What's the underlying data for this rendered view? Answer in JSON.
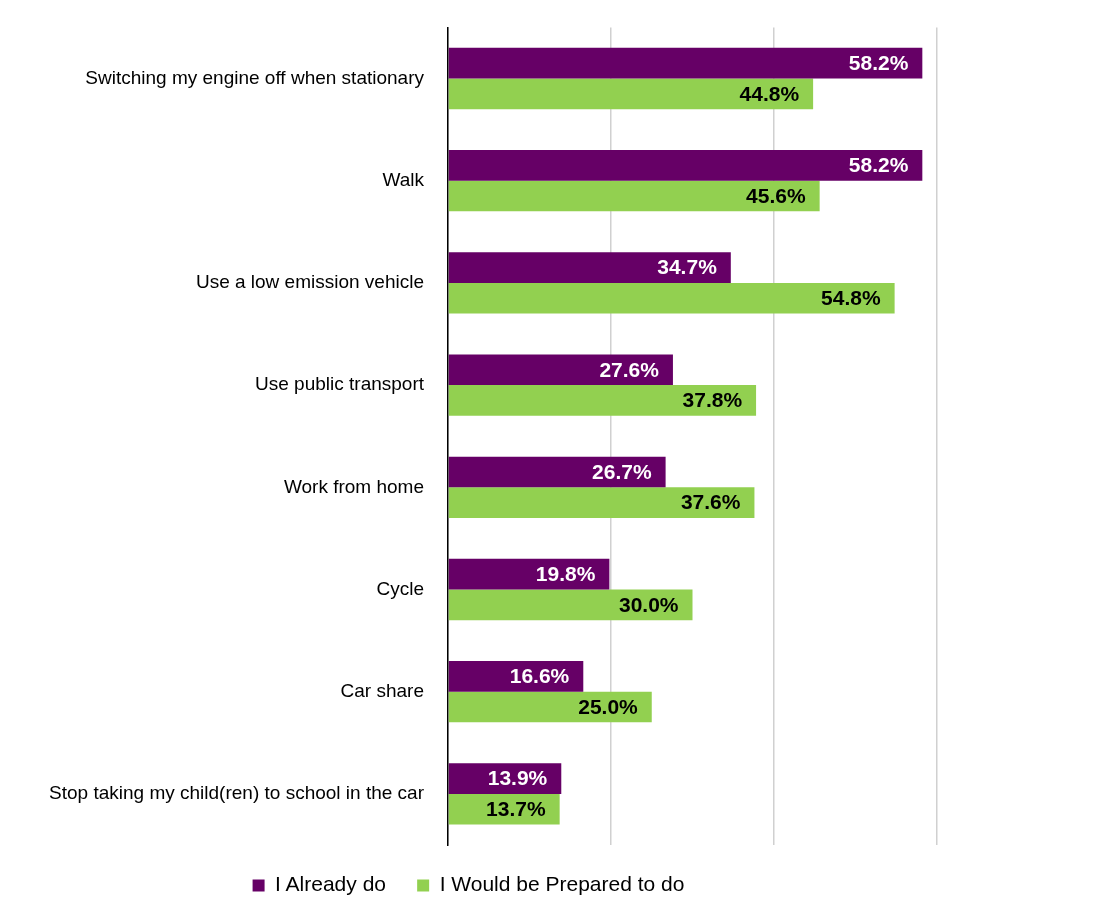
{
  "chart_data": {
    "type": "bar",
    "orientation": "horizontal",
    "categories": [
      "Switching my engine off when stationary",
      "Walk",
      "Use a low emission vehicle",
      "Use public transport",
      "Work from home",
      "Cycle",
      "Car share",
      "Stop taking my child(ren) to school in the car"
    ],
    "series": [
      {
        "name": "I Already do",
        "color": "#660066",
        "values": [
          58.2,
          58.2,
          34.7,
          27.6,
          26.7,
          19.8,
          16.6,
          13.9
        ],
        "value_labels": [
          "58.2%",
          "58.2%",
          "34.7%",
          "27.6%",
          "26.7%",
          "19.8%",
          "16.6%",
          "13.9%"
        ]
      },
      {
        "name": "I Would be Prepared to do",
        "color": "#92d050",
        "values": [
          44.8,
          45.6,
          54.8,
          37.8,
          37.6,
          30.0,
          25.0,
          13.7
        ],
        "value_labels": [
          "44.8%",
          "45.6%",
          "54.8%",
          "37.8%",
          "37.6%",
          "30.0%",
          "25.0%",
          "13.7%"
        ]
      }
    ],
    "xlim": [
      0,
      60
    ],
    "xticks": [
      {
        "value": 0,
        "label": null
      },
      {
        "value": 20,
        "label": null
      },
      {
        "value": 40,
        "label": null
      },
      {
        "value": 60,
        "label": null
      }
    ],
    "tick_labels": "y",
    "grid": "x",
    "legend": "bottom"
  }
}
